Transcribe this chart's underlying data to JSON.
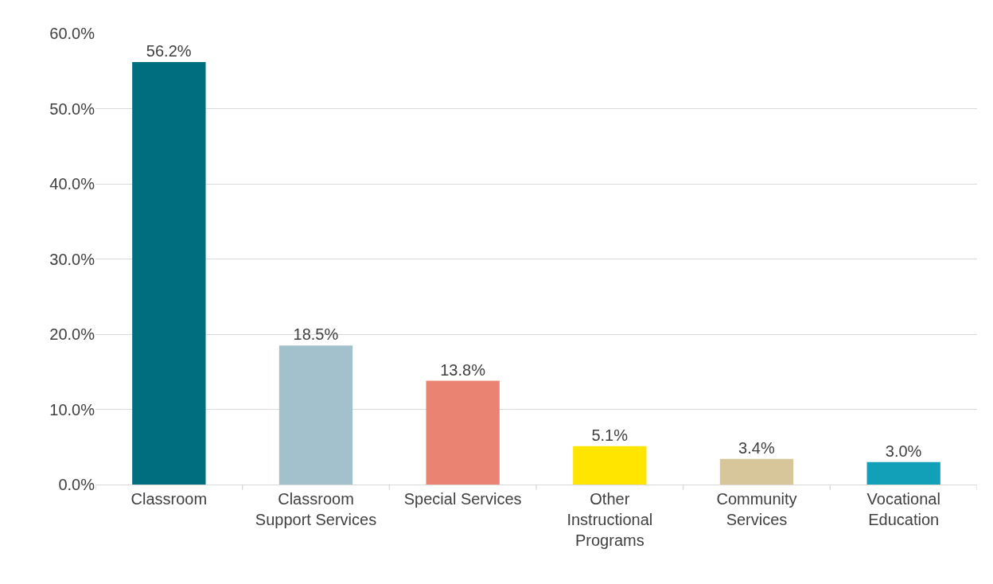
{
  "chart_data": {
    "type": "bar",
    "categories": [
      "Classroom",
      "Classroom Support Services",
      "Special Services",
      "Other Instructional Programs",
      "Community Services",
      "Vocational Education"
    ],
    "values": [
      56.2,
      18.5,
      13.8,
      5.1,
      3.4,
      3.0
    ],
    "colors": [
      "#006e7f",
      "#a3c1cc",
      "#eb8373",
      "#ffe500",
      "#d6c69a",
      "#12a0b8"
    ],
    "value_labels": [
      "56.2%",
      "18.5%",
      "13.8%",
      "5.1%",
      "3.4%",
      "3.0%"
    ],
    "ylim": [
      0,
      60
    ],
    "yticks": [
      {
        "value": 0,
        "label": "0.0%"
      },
      {
        "value": 10,
        "label": "10.0%"
      },
      {
        "value": 20,
        "label": "20.0%"
      },
      {
        "value": 30,
        "label": "30.0%"
      },
      {
        "value": 40,
        "label": "40.0%"
      },
      {
        "value": 50,
        "label": "50.0%"
      },
      {
        "value": 60,
        "label": "60.0%"
      }
    ],
    "grid": "y"
  }
}
